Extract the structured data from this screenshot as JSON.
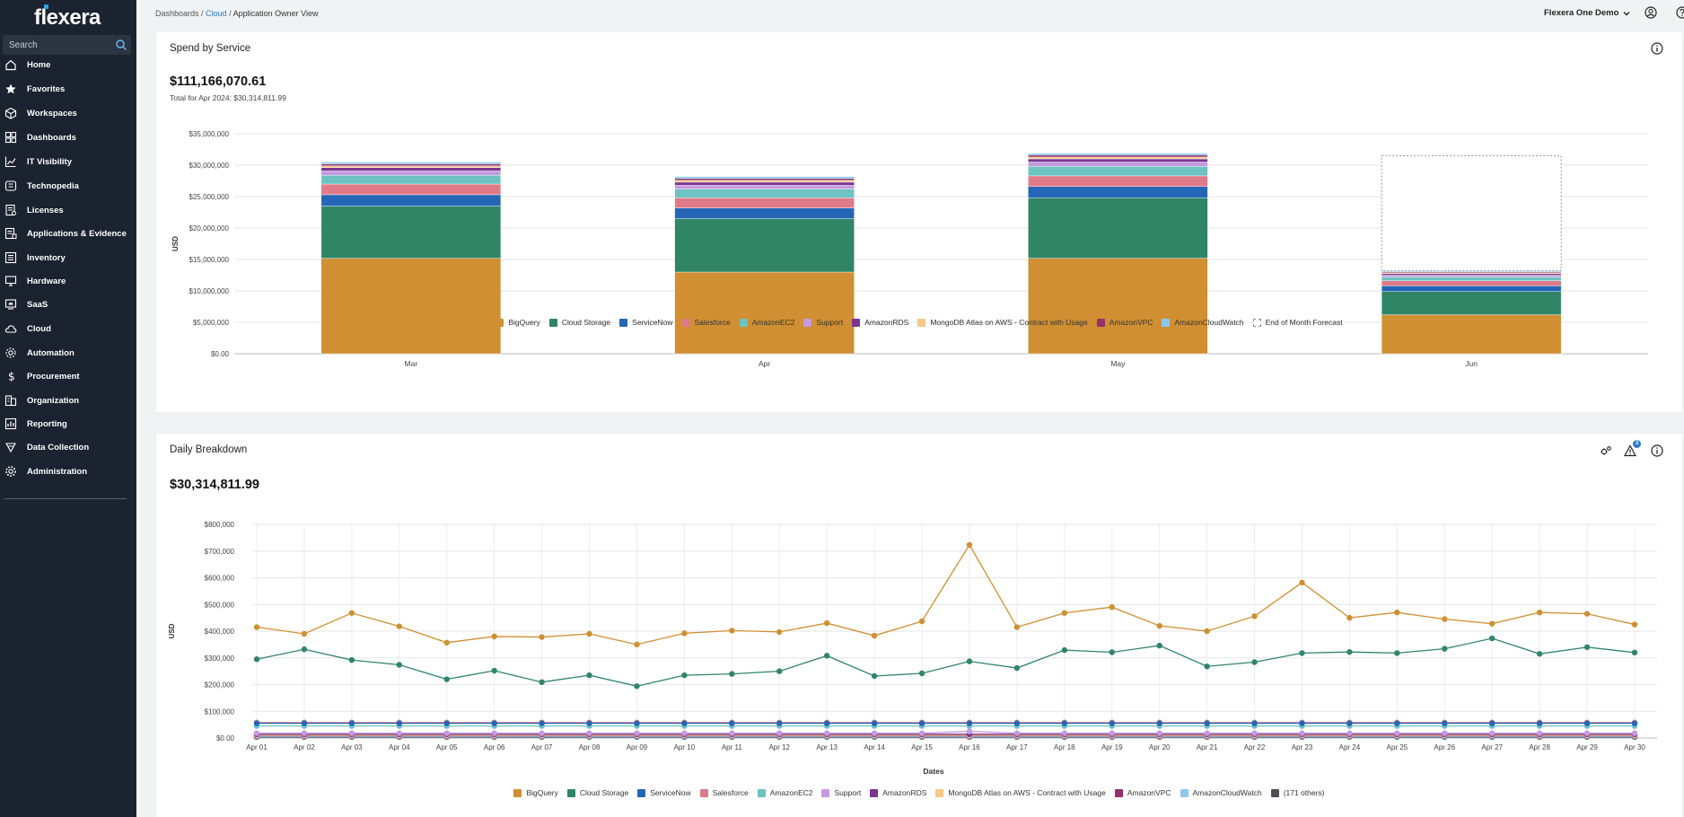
{
  "app": {
    "logo_text": "flexera"
  },
  "search": {
    "placeholder": "Search"
  },
  "sidebar": {
    "items": [
      {
        "label": "Home",
        "icon": "home-icon"
      },
      {
        "label": "Favorites",
        "icon": "star-icon"
      },
      {
        "label": "Workspaces",
        "icon": "cube-icon"
      },
      {
        "label": "Dashboards",
        "icon": "dashboard-icon"
      },
      {
        "label": "IT Visibility",
        "icon": "chart-icon"
      },
      {
        "label": "Technopedia",
        "icon": "book-icon"
      },
      {
        "label": "Licenses",
        "icon": "license-icon"
      },
      {
        "label": "Applications & Evidence",
        "icon": "applications-icon"
      },
      {
        "label": "Inventory",
        "icon": "inventory-icon"
      },
      {
        "label": "Hardware",
        "icon": "hardware-icon"
      },
      {
        "label": "SaaS",
        "icon": "saas-icon"
      },
      {
        "label": "Cloud",
        "icon": "cloud-icon"
      },
      {
        "label": "Automation",
        "icon": "automation-icon"
      },
      {
        "label": "Procurement",
        "icon": "dollar-icon"
      },
      {
        "label": "Organization",
        "icon": "organization-icon"
      },
      {
        "label": "Reporting",
        "icon": "reporting-icon"
      },
      {
        "label": "Data Collection",
        "icon": "data-collection-icon"
      },
      {
        "label": "Administration",
        "icon": "gear-icon"
      }
    ]
  },
  "breadcrumb": {
    "dashboards": "Dashboards",
    "sep": " / ",
    "cloud": "Cloud",
    "current": "Application Owner View"
  },
  "topbar": {
    "org": "Flexera One Demo"
  },
  "spend_card": {
    "title": "Spend by Service",
    "total": "$111,166,070.61",
    "subtotal": "Total for Apr 2024: $30,314,811.99"
  },
  "daily_card": {
    "title": "Daily Breakdown",
    "total": "$30,314,811.99",
    "alert_count": "3"
  },
  "colors": {
    "BigQuery": "#cf8f32",
    "Cloud Storage": "#308566",
    "ServiceNow": "#2566b6",
    "Salesforce": "#e07a88",
    "AmazonEC2": "#6cc3c1",
    "Support": "#c49be0",
    "AmazonRDS": "#7a3590",
    "MongoDB Atlas on AWS - Contract with Usage": "#f7c98a",
    "AmazonVPC": "#94306a",
    "AmazonCloudWatch": "#8cc8ee",
    "(171 others)": "#4a4e55"
  },
  "chart_data": [
    {
      "type": "bar",
      "stacked": true,
      "ylabel": "USD",
      "ylim": [
        0,
        35000000
      ],
      "yticks": [
        "$0.00",
        "$5,000,000",
        "$10,000,000",
        "$15,000,000",
        "$20,000,000",
        "$25,000,000",
        "$30,000,000",
        "$35,000,000"
      ],
      "categories": [
        "Mar",
        "Apr",
        "May",
        "Jun"
      ],
      "series": [
        {
          "name": "BigQuery",
          "values": [
            15200000,
            13000000,
            15200000,
            6200000
          ]
        },
        {
          "name": "Cloud Storage",
          "values": [
            8300000,
            8500000,
            9600000,
            3700000
          ]
        },
        {
          "name": "ServiceNow",
          "values": [
            1800000,
            1700000,
            1800000,
            900000
          ]
        },
        {
          "name": "Salesforce",
          "values": [
            1700000,
            1600000,
            1700000,
            800000
          ]
        },
        {
          "name": "AmazonEC2",
          "values": [
            1400000,
            1400000,
            1500000,
            600000
          ]
        },
        {
          "name": "Support",
          "values": [
            700000,
            600000,
            700000,
            300000
          ]
        },
        {
          "name": "AmazonRDS",
          "values": [
            500000,
            500000,
            500000,
            250000
          ]
        },
        {
          "name": "MongoDB Atlas on AWS - Contract with Usage",
          "values": [
            300000,
            300000,
            300000,
            150000
          ]
        },
        {
          "name": "AmazonVPC",
          "values": [
            300000,
            300000,
            300000,
            150000
          ]
        },
        {
          "name": "AmazonCloudWatch",
          "values": [
            300000,
            300000,
            300000,
            150000
          ]
        },
        {
          "name": "End of Month Forecast",
          "values": [
            0,
            0,
            0,
            18300000
          ]
        }
      ],
      "legend": [
        "BigQuery",
        "Cloud Storage",
        "ServiceNow",
        "Salesforce",
        "AmazonEC2",
        "Support",
        "AmazonRDS",
        "MongoDB Atlas on AWS - Contract with Usage",
        "AmazonVPC",
        "AmazonCloudWatch",
        "End of Month Forecast"
      ],
      "legend_position": "bottom"
    },
    {
      "type": "line",
      "xlabel": "Dates",
      "ylabel": "USD",
      "ylim": [
        0,
        800000
      ],
      "yticks": [
        "$0.00",
        "$100,000",
        "$200,000",
        "$300,000",
        "$400,000",
        "$500,000",
        "$600,000",
        "$700,000",
        "$800,000"
      ],
      "x": [
        "Apr 01",
        "Apr 02",
        "Apr 03",
        "Apr 04",
        "Apr 05",
        "Apr 06",
        "Apr 07",
        "Apr 08",
        "Apr 09",
        "Apr 10",
        "Apr 11",
        "Apr 12",
        "Apr 13",
        "Apr 14",
        "Apr 15",
        "Apr 16",
        "Apr 17",
        "Apr 18",
        "Apr 19",
        "Apr 20",
        "Apr 21",
        "Apr 22",
        "Apr 23",
        "Apr 24",
        "Apr 25",
        "Apr 26",
        "Apr 27",
        "Apr 28",
        "Apr 29",
        "Apr 30"
      ],
      "series": [
        {
          "name": "BigQuery",
          "values": [
            415000,
            390000,
            468000,
            418000,
            357000,
            380000,
            378000,
            390000,
            350000,
            392000,
            402000,
            397000,
            430000,
            383000,
            437000,
            723000,
            415000,
            468000,
            490000,
            420000,
            400000,
            456000,
            582000,
            450000,
            470000,
            445000,
            428000,
            470000,
            465000,
            425000
          ]
        },
        {
          "name": "Cloud Storage",
          "values": [
            295000,
            332000,
            292000,
            274000,
            220000,
            252000,
            209000,
            235000,
            194000,
            235000,
            240000,
            250000,
            308000,
            232000,
            242000,
            287000,
            262000,
            329000,
            321000,
            346000,
            268000,
            284000,
            318000,
            322000,
            318000,
            334000,
            373000,
            315000,
            340000,
            320000
          ]
        },
        {
          "name": "ServiceNow",
          "values": [
            55000,
            55000,
            55000,
            55000,
            55000,
            55000,
            55000,
            55000,
            55000,
            55000,
            55000,
            55000,
            55000,
            55000,
            55000,
            55000,
            55000,
            55000,
            55000,
            55000,
            55000,
            55000,
            55000,
            55000,
            55000,
            55000,
            55000,
            55000,
            55000,
            55000
          ]
        },
        {
          "name": "Salesforce",
          "values": [
            58000,
            58000,
            58000,
            58000,
            58000,
            58000,
            58000,
            58000,
            58000,
            58000,
            58000,
            58000,
            58000,
            58000,
            58000,
            58000,
            58000,
            58000,
            58000,
            58000,
            58000,
            58000,
            58000,
            58000,
            58000,
            58000,
            58000,
            58000,
            58000,
            58000
          ]
        },
        {
          "name": "AmazonEC2",
          "values": [
            45000,
            45000,
            45000,
            45000,
            45000,
            45000,
            45000,
            45000,
            45000,
            45000,
            45000,
            45000,
            45000,
            45000,
            45000,
            45000,
            45000,
            45000,
            45000,
            45000,
            45000,
            45000,
            45000,
            45000,
            45000,
            45000,
            45000,
            45000,
            45000,
            45000
          ]
        },
        {
          "name": "Support",
          "values": [
            18000,
            18000,
            18000,
            18000,
            18000,
            18000,
            18000,
            18000,
            18000,
            18000,
            18000,
            18000,
            18000,
            18000,
            18000,
            25000,
            18000,
            18000,
            18000,
            18000,
            18000,
            18000,
            18000,
            18000,
            18000,
            18000,
            18000,
            18000,
            18000,
            18000
          ]
        },
        {
          "name": "AmazonRDS",
          "values": [
            14000,
            14000,
            14000,
            14000,
            14000,
            14000,
            14000,
            14000,
            14000,
            14000,
            14000,
            14000,
            14000,
            14000,
            14000,
            14000,
            14000,
            14000,
            14000,
            14000,
            14000,
            14000,
            14000,
            14000,
            14000,
            14000,
            14000,
            14000,
            14000,
            14000
          ]
        },
        {
          "name": "MongoDB Atlas on AWS - Contract with Usage",
          "values": [
            10000,
            10000,
            10000,
            10000,
            10000,
            10000,
            10000,
            10000,
            10000,
            10000,
            10000,
            10000,
            10000,
            10000,
            10000,
            10000,
            10000,
            10000,
            10000,
            10000,
            10000,
            10000,
            10000,
            10000,
            10000,
            10000,
            10000,
            10000,
            10000,
            10000
          ]
        },
        {
          "name": "AmazonVPC",
          "values": [
            8000,
            8000,
            8000,
            8000,
            8000,
            8000,
            8000,
            8000,
            8000,
            8000,
            8000,
            8000,
            8000,
            8000,
            8000,
            8000,
            8000,
            8000,
            8000,
            8000,
            8000,
            8000,
            8000,
            8000,
            8000,
            8000,
            8000,
            8000,
            8000,
            8000
          ]
        },
        {
          "name": "AmazonCloudWatch",
          "values": [
            5000,
            5000,
            5000,
            5000,
            5000,
            5000,
            5000,
            5000,
            5000,
            5000,
            5000,
            5000,
            5000,
            5000,
            5000,
            5000,
            5000,
            5000,
            5000,
            5000,
            5000,
            5000,
            5000,
            5000,
            5000,
            5000,
            5000,
            5000,
            5000,
            5000
          ]
        },
        {
          "name": "(171 others)",
          "values": [
            3000,
            3000,
            3000,
            3000,
            3000,
            3000,
            3000,
            3000,
            3000,
            3000,
            3000,
            3000,
            3000,
            3000,
            3000,
            3000,
            3000,
            3000,
            3000,
            3000,
            3000,
            3000,
            3000,
            3000,
            3000,
            3000,
            3000,
            3000,
            3000,
            3000
          ]
        }
      ],
      "legend": [
        "BigQuery",
        "Cloud Storage",
        "ServiceNow",
        "Salesforce",
        "AmazonEC2",
        "Support",
        "AmazonRDS",
        "MongoDB Atlas on AWS - Contract with Usage",
        "AmazonVPC",
        "AmazonCloudWatch",
        "(171 others)"
      ],
      "legend_position": "bottom",
      "grid": true
    }
  ]
}
